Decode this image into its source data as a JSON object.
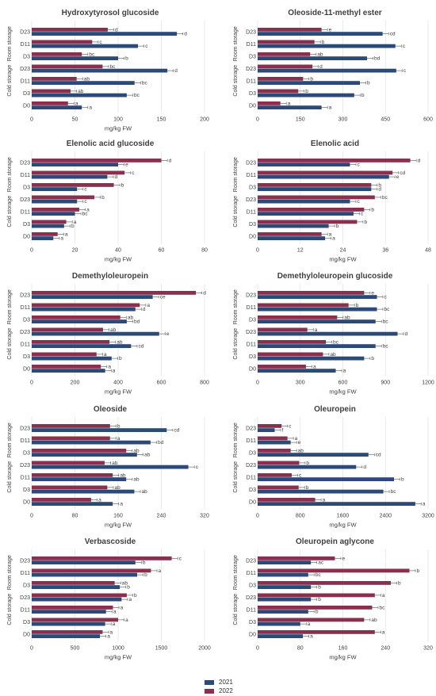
{
  "legend": {
    "items": [
      {
        "label": "2021",
        "color": "#2c4a78"
      },
      {
        "label": "2022",
        "color": "#8b2f4f"
      }
    ]
  },
  "colors": {
    "s2021": "#2c4a78",
    "s2022": "#8b2f4f",
    "grid": "#e2e2e2",
    "text": "#404040"
  },
  "chart_data": [
    {
      "type": "bar",
      "orientation": "horizontal",
      "title": "Hydroxytyrosol glucoside",
      "xlabel": "mg/kg FW",
      "categories": [
        "D23",
        "D11",
        "D3",
        "D23",
        "D11",
        "D3",
        "D0"
      ],
      "groups": [
        {
          "label": "Room storage",
          "rows": [
            0,
            1,
            2
          ]
        },
        {
          "label": "Cold storage",
          "rows": [
            3,
            4,
            5
          ]
        }
      ],
      "xlim": [
        0,
        200
      ],
      "xticks": [
        0,
        50,
        100,
        150,
        200
      ],
      "series": [
        {
          "name": "2021",
          "values": [
            168,
            123,
            100,
            157,
            119,
            110,
            58
          ],
          "letters": [
            "d",
            "c",
            "b",
            "d",
            "bc",
            "bc",
            "a"
          ]
        },
        {
          "name": "2022",
          "values": [
            88,
            70,
            58,
            82,
            52,
            45,
            42
          ],
          "letters": [
            "d",
            "c",
            "bc",
            "bc",
            "ab",
            "ab",
            "a"
          ]
        }
      ]
    },
    {
      "type": "bar",
      "orientation": "horizontal",
      "title": "Oleoside-11-methyl ester",
      "xlabel": "",
      "categories": [
        "D23",
        "D11",
        "D3",
        "D23",
        "D11",
        "D3",
        "D0"
      ],
      "groups": [
        {
          "label": "Room storage",
          "rows": [
            0,
            1,
            2
          ]
        },
        {
          "label": "Cold storage",
          "rows": [
            3,
            4,
            5
          ]
        }
      ],
      "xlim": [
        0,
        600
      ],
      "xticks": [
        0,
        150,
        300,
        450,
        600
      ],
      "series": [
        {
          "name": "2021",
          "values": [
            440,
            485,
            385,
            488,
            360,
            340,
            225
          ],
          "letters": [
            "cd",
            "c",
            "bd",
            "c",
            "b",
            "b",
            "a"
          ]
        },
        {
          "name": "2022",
          "values": [
            225,
            200,
            185,
            193,
            160,
            143,
            80
          ],
          "letters": [
            "e",
            "b",
            "ab",
            "d",
            "b",
            "b",
            "a"
          ]
        }
      ]
    },
    {
      "type": "bar",
      "orientation": "horizontal",
      "title": "Elenolic acid glucoside",
      "xlabel": "mg/kg FW",
      "categories": [
        "D23",
        "D11",
        "D3",
        "D23",
        "D11",
        "D3",
        "D0"
      ],
      "groups": [
        {
          "label": "Room storage",
          "rows": [
            0,
            1,
            2
          ]
        },
        {
          "label": "Cold storage",
          "rows": [
            3,
            4,
            5
          ]
        }
      ],
      "xlim": [
        0,
        80
      ],
      "xticks": [
        0,
        20,
        40,
        60,
        80
      ],
      "series": [
        {
          "name": "2021",
          "values": [
            40,
            35,
            21,
            21,
            20,
            15,
            10
          ],
          "letters": [
            "e",
            "d",
            "c",
            "c",
            "bc",
            "b",
            "a"
          ]
        },
        {
          "name": "2022",
          "values": [
            60,
            43,
            38,
            29,
            22,
            16,
            12
          ],
          "letters": [
            "d",
            "c",
            "b",
            "b",
            "a",
            "a",
            "a"
          ]
        }
      ]
    },
    {
      "type": "bar",
      "orientation": "horizontal",
      "title": "Elenolic acid",
      "xlabel": "mg/kg FW",
      "categories": [
        "D23",
        "D11",
        "D3",
        "D23",
        "D11",
        "D3",
        "D0"
      ],
      "groups": [
        {
          "label": "Room storage",
          "rows": [
            0,
            1,
            2
          ]
        },
        {
          "label": "Cold storage",
          "rows": [
            3,
            4,
            5
          ]
        }
      ],
      "xlim": [
        0,
        48
      ],
      "xticks": [
        0,
        12,
        24,
        36,
        48
      ],
      "series": [
        {
          "name": "2021",
          "values": [
            26,
            37,
            32,
            26,
            27,
            20,
            19
          ],
          "letters": [
            "c",
            "e",
            "d",
            "c",
            "c",
            "b",
            "a"
          ]
        },
        {
          "name": "2022",
          "values": [
            43,
            38,
            32,
            33,
            30,
            28,
            18
          ],
          "letters": [
            "d",
            "cd",
            "b",
            "bc",
            "b",
            "b",
            "a"
          ]
        }
      ]
    },
    {
      "type": "bar",
      "orientation": "horizontal",
      "title": "Demethyloleuropein",
      "xlabel": "mg/kg FW",
      "categories": [
        "D23",
        "D11",
        "D3",
        "D23",
        "D11",
        "D3",
        "D0"
      ],
      "groups": [
        {
          "label": "Room storage",
          "rows": [
            0,
            1,
            2
          ]
        },
        {
          "label": "Cold storage",
          "rows": [
            3,
            4,
            5
          ]
        }
      ],
      "xlim": [
        0,
        800
      ],
      "xticks": [
        0,
        200,
        400,
        600,
        800
      ],
      "series": [
        {
          "name": "2021",
          "values": [
            560,
            480,
            440,
            590,
            460,
            370,
            340
          ],
          "letters": [
            "ce",
            "d",
            "bd",
            "e",
            "cd",
            "b",
            "a"
          ]
        },
        {
          "name": "2022",
          "values": [
            760,
            500,
            410,
            330,
            360,
            300,
            320
          ],
          "letters": [
            "d",
            "a",
            "ab",
            "ab",
            "ab",
            "a",
            "a"
          ]
        }
      ]
    },
    {
      "type": "bar",
      "orientation": "horizontal",
      "title": "Demethyloleuropein glucoside",
      "xlabel": "mg/kg FW",
      "categories": [
        "D23",
        "D11",
        "D3",
        "D23",
        "D11",
        "D3",
        "D0"
      ],
      "groups": [
        {
          "label": "Room storage",
          "rows": [
            0,
            1,
            2
          ]
        },
        {
          "label": "Cold storage",
          "rows": [
            3,
            4,
            5
          ]
        }
      ],
      "xlim": [
        0,
        1200
      ],
      "xticks": [
        0,
        300,
        600,
        900,
        1200
      ],
      "series": [
        {
          "name": "2021",
          "values": [
            840,
            840,
            830,
            985,
            830,
            750,
            550
          ],
          "letters": [
            "c",
            "bc",
            "bc",
            "d",
            "bc",
            "b",
            "a"
          ]
        },
        {
          "name": "2022",
          "values": [
            750,
            640,
            560,
            350,
            480,
            460,
            340
          ],
          "letters": [
            "e",
            "b",
            "ab",
            "a",
            "bc",
            "ab",
            "a"
          ]
        }
      ]
    },
    {
      "type": "bar",
      "orientation": "horizontal",
      "title": "Oleoside",
      "xlabel": "mg/kg FW",
      "categories": [
        "D23",
        "D11",
        "D3",
        "D23",
        "D11",
        "D3",
        "D0"
      ],
      "groups": [
        {
          "label": "Room storage",
          "rows": [
            0,
            1,
            2
          ]
        },
        {
          "label": "Cold storage",
          "rows": [
            3,
            4,
            5
          ]
        }
      ],
      "xlim": [
        0,
        320
      ],
      "xticks": [
        0,
        80,
        160,
        240,
        320
      ],
      "series": [
        {
          "name": "2021",
          "values": [
            250,
            220,
            195,
            290,
            175,
            190,
            150
          ],
          "letters": [
            "cd",
            "bd",
            "ab",
            "c",
            "ab",
            "ab",
            "a"
          ]
        },
        {
          "name": "2022",
          "values": [
            145,
            145,
            175,
            135,
            150,
            140,
            110
          ],
          "letters": [
            "b",
            "a",
            "ab",
            "ab",
            "ab",
            "ab",
            "a"
          ]
        }
      ]
    },
    {
      "type": "bar",
      "orientation": "horizontal",
      "title": "Oleuropein",
      "xlabel": "mg/kg FW",
      "categories": [
        "D23",
        "D11",
        "D3",
        "D23",
        "D11",
        "D3",
        "D0"
      ],
      "groups": [
        {
          "label": "Room storage",
          "rows": [
            0,
            1,
            2
          ]
        },
        {
          "label": "Cold storage",
          "rows": [
            3,
            4,
            5
          ]
        }
      ],
      "xlim": [
        0,
        3200
      ],
      "xticks": [
        0,
        800,
        1600,
        2400,
        3200
      ],
      "series": [
        {
          "name": "2021",
          "values": [
            320,
            620,
            2080,
            1850,
            2560,
            2360,
            2960
          ],
          "letters": [
            "f",
            "e",
            "cd",
            "d",
            "b",
            "bc",
            "a"
          ]
        },
        {
          "name": "2022",
          "values": [
            450,
            560,
            620,
            780,
            640,
            770,
            1080
          ],
          "letters": [
            "c",
            "a",
            "ab",
            "b",
            "c",
            "b",
            "a"
          ]
        }
      ]
    },
    {
      "type": "bar",
      "orientation": "horizontal",
      "title": "Verbascoside",
      "xlabel": "mg/kg FW",
      "categories": [
        "D23",
        "D11",
        "D3",
        "D23",
        "D11",
        "D3",
        "D0"
      ],
      "groups": [
        {
          "label": "Room storage",
          "rows": [
            0,
            1,
            2
          ]
        },
        {
          "label": "Cold storage",
          "rows": [
            3,
            4,
            5
          ]
        }
      ],
      "xlim": [
        0,
        2000
      ],
      "xticks": [
        0,
        500,
        1000,
        1500,
        2000
      ],
      "series": [
        {
          "name": "2021",
          "values": [
            1200,
            1220,
            1020,
            1040,
            860,
            850,
            790
          ],
          "letters": [
            "b",
            "b",
            "b",
            "a",
            "a",
            "a",
            "a"
          ]
        },
        {
          "name": "2022",
          "values": [
            1620,
            1380,
            960,
            1100,
            940,
            1000,
            820
          ],
          "letters": [
            "c",
            "a",
            "ab",
            "b",
            "a",
            "a",
            "a"
          ]
        }
      ]
    },
    {
      "type": "bar",
      "orientation": "horizontal",
      "title": "Oleuropein aglycone",
      "xlabel": "mg/kg FW",
      "categories": [
        "D23",
        "D11",
        "D3",
        "D23",
        "D11",
        "D3",
        "D0"
      ],
      "groups": [
        {
          "label": "Room storage",
          "rows": [
            0,
            1,
            2
          ]
        },
        {
          "label": "Cold storage",
          "rows": [
            3,
            4,
            5
          ]
        }
      ],
      "xlim": [
        0,
        320
      ],
      "xticks": [
        0,
        80,
        160,
        240,
        320
      ],
      "series": [
        {
          "name": "2021",
          "values": [
            100,
            95,
            100,
            100,
            95,
            80,
            85
          ],
          "letters": [
            "ac",
            "bc",
            "b",
            "b",
            "b",
            "a",
            "a"
          ]
        },
        {
          "name": "2022",
          "values": [
            145,
            285,
            250,
            220,
            215,
            200,
            220
          ],
          "letters": [
            "e",
            "b",
            "b",
            "a",
            "bc",
            "ab",
            "a"
          ]
        }
      ]
    }
  ]
}
